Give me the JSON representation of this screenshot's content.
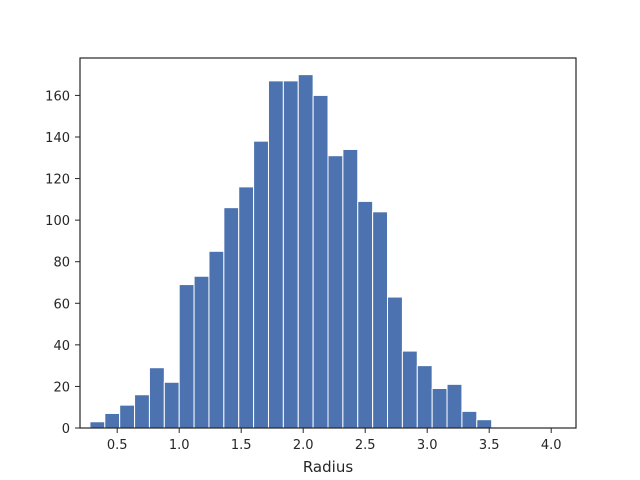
{
  "chart_data": {
    "type": "bar",
    "title": "",
    "xlabel": "Radius",
    "ylabel": "",
    "xlim": [
      0.2,
      4.2
    ],
    "ylim": [
      0,
      178
    ],
    "grid": false,
    "bar_color": "#4c72b0",
    "bin_width": 0.12,
    "bin_starts": [
      0.28,
      0.4,
      0.52,
      0.64,
      0.76,
      0.88,
      1.0,
      1.12,
      1.24,
      1.36,
      1.48,
      1.6,
      1.72,
      1.84,
      1.96,
      2.08,
      2.2,
      2.32,
      2.44,
      2.56,
      2.68,
      2.8,
      2.92,
      3.04,
      3.16,
      3.28,
      3.4,
      3.52,
      3.64,
      3.76,
      3.88
    ],
    "values": [
      3,
      7,
      11,
      16,
      29,
      22,
      69,
      73,
      85,
      106,
      116,
      138,
      167,
      167,
      170,
      160,
      131,
      134,
      109,
      104,
      63,
      37,
      30,
      19,
      21,
      8,
      4,
      0,
      0,
      0,
      0
    ],
    "xticks": [
      0.5,
      1.0,
      1.5,
      2.0,
      2.5,
      3.0,
      3.5,
      4.0
    ],
    "xtick_labels": [
      "0.5",
      "1.0",
      "1.5",
      "2.0",
      "2.5",
      "3.0",
      "3.5",
      "4.0"
    ],
    "yticks": [
      0,
      20,
      40,
      60,
      80,
      100,
      120,
      140,
      160
    ],
    "ytick_labels": [
      "0",
      "20",
      "40",
      "60",
      "80",
      "100",
      "120",
      "140",
      "160"
    ]
  }
}
